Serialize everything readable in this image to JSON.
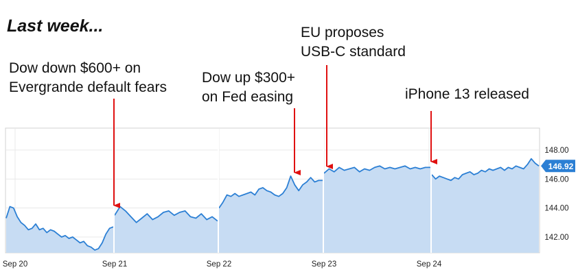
{
  "headline": "Last week...",
  "annotations": [
    {
      "lines": [
        "Dow down $600+ on",
        "Evergrande default fears"
      ]
    },
    {
      "lines": [
        "Dow up $300+",
        "on Fed easing"
      ]
    },
    {
      "lines": [
        "EU proposes",
        "USB-C standard"
      ]
    },
    {
      "lines": [
        "iPhone 13 released"
      ]
    }
  ],
  "colors": {
    "line": "#2b7fd4",
    "fill": "#c7dcf3",
    "arrow": "#e01010",
    "badge": "#2b7fd4"
  },
  "chart_data": {
    "type": "area",
    "title": "",
    "xlabel": "",
    "ylabel": "",
    "ylim": [
      141,
      149
    ],
    "x_ticks": [
      "Sep 20",
      "Sep 21",
      "Sep 22",
      "Sep 23",
      "Sep 24"
    ],
    "y_ticks": [
      "142.00",
      "144.00",
      "146.00",
      "148.00"
    ],
    "y_tick_values": [
      142,
      144,
      146,
      148
    ],
    "last_value_label": "146.92",
    "grid": true,
    "series": [
      {
        "session": "Sep 20",
        "values": [
          143.3,
          144.1,
          144.0,
          143.4,
          143.0,
          142.8,
          142.5,
          142.6,
          142.9,
          142.5,
          142.6,
          142.3,
          142.5,
          142.4,
          142.2,
          142.0,
          142.1,
          141.9,
          142.0,
          141.8,
          141.6,
          141.7,
          141.4,
          141.3,
          141.1,
          141.2,
          141.6,
          142.2,
          142.6,
          142.7
        ]
      },
      {
        "session": "Sep 21",
        "values": [
          143.5,
          144.1,
          143.8,
          143.4,
          143.0,
          143.3,
          143.6,
          143.2,
          143.4,
          143.7,
          143.8,
          143.5,
          143.7,
          143.8,
          143.4,
          143.3,
          143.6,
          143.2,
          143.4,
          143.1
        ]
      },
      {
        "session": "Sep 22",
        "values": [
          144.0,
          144.4,
          144.9,
          144.8,
          145.0,
          144.8,
          144.9,
          145.0,
          145.1,
          144.9,
          145.3,
          145.4,
          145.2,
          145.1,
          144.9,
          144.8,
          145.0,
          145.4,
          146.2,
          145.6,
          145.2,
          145.6,
          145.8,
          146.1,
          145.8,
          145.9,
          145.9
        ]
      },
      {
        "session": "Sep 23",
        "values": [
          146.4,
          146.7,
          146.5,
          146.8,
          146.6,
          146.7,
          146.8,
          146.5,
          146.7,
          146.6,
          146.8,
          146.9,
          146.7,
          146.8,
          146.7,
          146.8,
          146.9,
          146.7,
          146.8,
          146.7,
          146.8,
          146.8
        ]
      },
      {
        "session": "Sep 24",
        "values": [
          146.3,
          146.0,
          146.2,
          146.1,
          146.0,
          145.9,
          146.1,
          146.0,
          146.3,
          146.4,
          146.5,
          146.3,
          146.4,
          146.6,
          146.5,
          146.7,
          146.6,
          146.7,
          146.8,
          146.6,
          146.8,
          146.7,
          146.9,
          146.8,
          146.7,
          147.0,
          147.4,
          147.1,
          146.9
        ]
      }
    ]
  }
}
